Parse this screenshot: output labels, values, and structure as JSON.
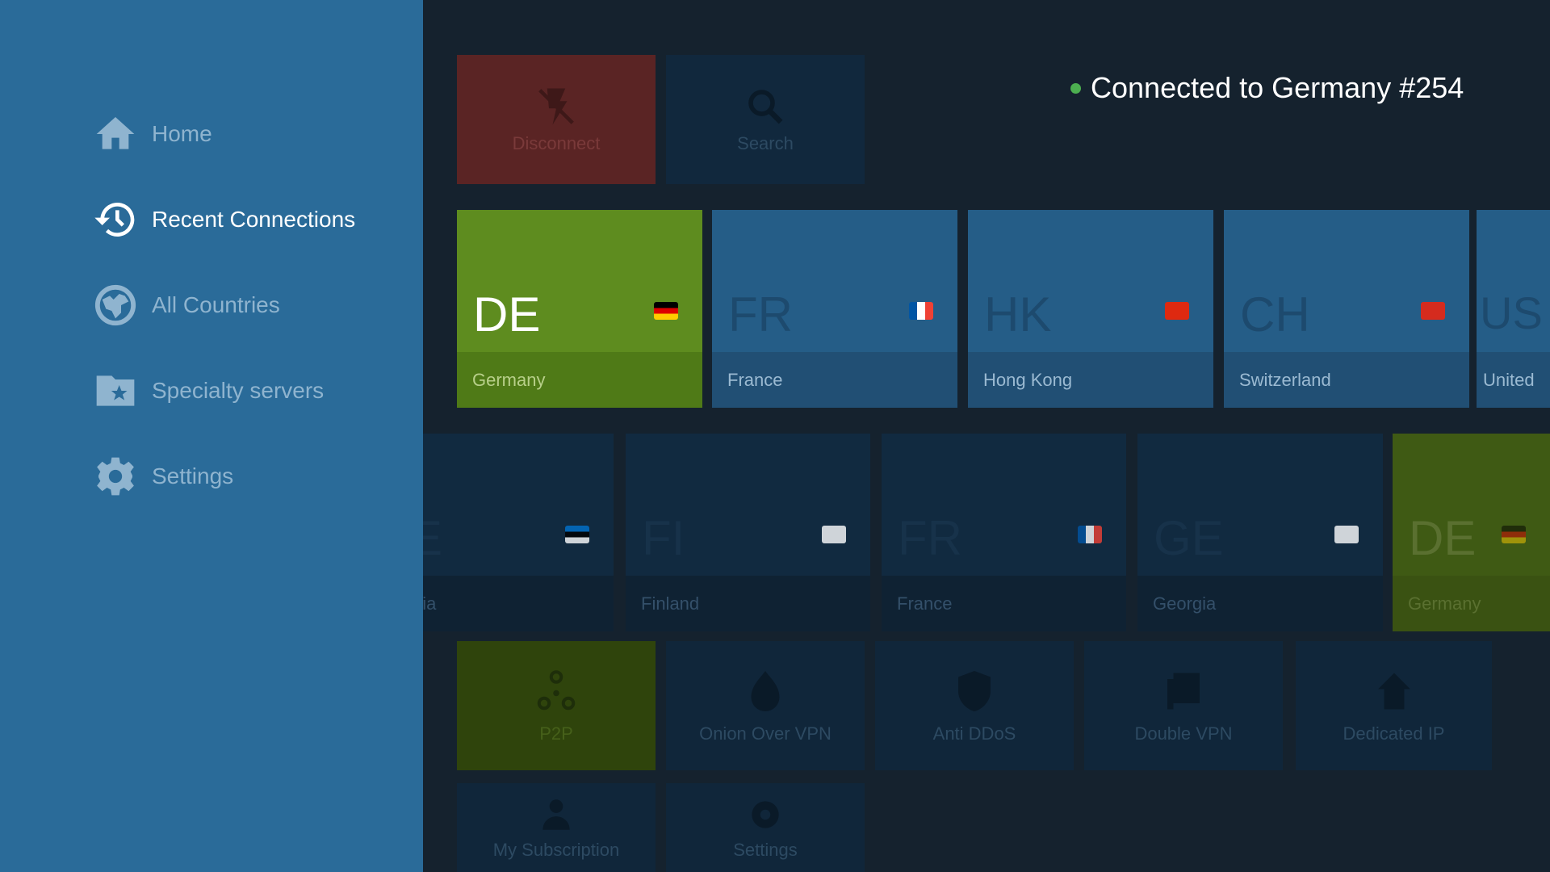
{
  "sidebar": {
    "items": [
      {
        "label": "Home",
        "icon": "home-icon",
        "active": false
      },
      {
        "label": "Recent Connections",
        "icon": "history-icon",
        "active": true
      },
      {
        "label": "All Countries",
        "icon": "globe-icon",
        "active": false
      },
      {
        "label": "Specialty servers",
        "icon": "folder-star-icon",
        "active": false
      },
      {
        "label": "Settings",
        "icon": "gear-icon",
        "active": false
      }
    ]
  },
  "actions": {
    "disconnect": "Disconnect",
    "search": "Search"
  },
  "status": {
    "text": "Connected to Germany #254",
    "color": "#4caf50"
  },
  "recent": [
    {
      "code": "DE",
      "name": "Germany"
    },
    {
      "code": "FR",
      "name": "France"
    },
    {
      "code": "HK",
      "name": "Hong Kong"
    },
    {
      "code": "CH",
      "name": "Switzerland"
    },
    {
      "code": "US",
      "name": "United"
    }
  ],
  "countries": [
    {
      "code": "EE",
      "name": "Estonia"
    },
    {
      "code": "FI",
      "name": "Finland"
    },
    {
      "code": "FR",
      "name": "France"
    },
    {
      "code": "GE",
      "name": "Georgia"
    },
    {
      "code": "DE",
      "name": "Germany"
    }
  ],
  "specialty": [
    {
      "label": "P2P",
      "icon": "p2p-icon"
    },
    {
      "label": "Onion Over VPN",
      "icon": "onion-icon"
    },
    {
      "label": "Anti DDoS",
      "icon": "shield-icon"
    },
    {
      "label": "Double VPN",
      "icon": "double-vpn-icon"
    },
    {
      "label": "Dedicated IP",
      "icon": "house-icon"
    },
    {
      "label": "My Subscription",
      "icon": "user-icon"
    },
    {
      "label": "Settings",
      "icon": "gear-icon"
    }
  ],
  "colors": {
    "accent_green": "#5e8c1f",
    "disconnect_red": "#5a2424",
    "sidebar": "#2a6b99"
  }
}
